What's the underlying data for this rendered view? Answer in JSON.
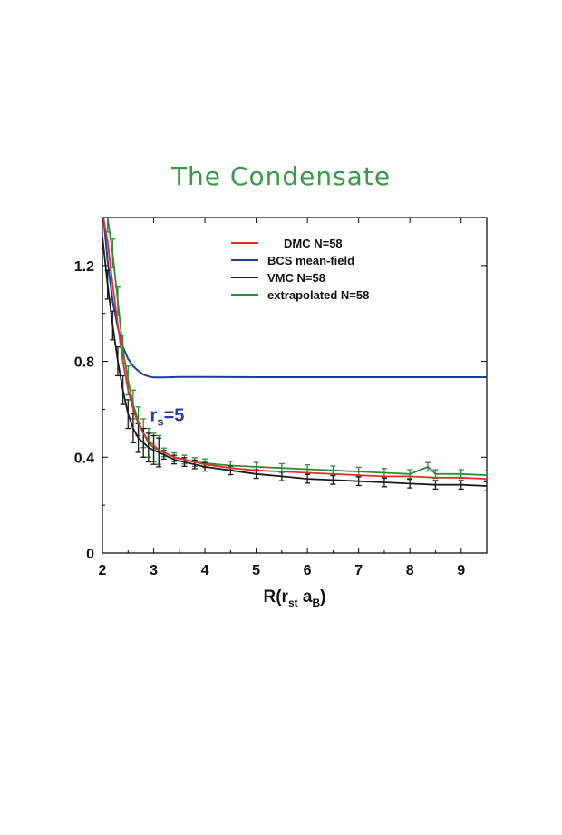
{
  "page": {
    "title": "The Condensate"
  },
  "chart_data": {
    "type": "line",
    "title": "The Condensate",
    "xlabel": "R(r",
    "xlabel_sub1": "st",
    "xlabel_mid": " a",
    "xlabel_sub2": "B",
    "xlabel_end": ")",
    "ylabel": "",
    "xlim": [
      2,
      9.5
    ],
    "ylim": [
      0,
      1.4
    ],
    "x_ticks": [
      2,
      3,
      4,
      5,
      6,
      7,
      8,
      9
    ],
    "y_ticks": [
      0,
      0.4,
      0.8,
      1.2
    ],
    "y_tick_labels": [
      "0",
      "0.4",
      "0.8",
      "1.2"
    ],
    "grid": false,
    "legend_position": "top-right",
    "annotation": {
      "text": "r",
      "sub": "s",
      "rest": "=5",
      "x": 3.0,
      "y": 0.52,
      "color": "#2a3f9a"
    },
    "series": [
      {
        "name": "DMC  N=58",
        "color": "#e0302a",
        "error_bars": false,
        "x": [
          2.0,
          2.1,
          2.2,
          2.3,
          2.4,
          2.5,
          2.6,
          2.7,
          2.8,
          2.9,
          3.0,
          3.1,
          3.2,
          3.4,
          3.6,
          3.8,
          4.0,
          4.5,
          5.0,
          5.5,
          6.0,
          6.5,
          7.0,
          7.5,
          8.0,
          8.5,
          9.0,
          9.5
        ],
        "y": [
          1.42,
          1.3,
          1.12,
          0.95,
          0.8,
          0.68,
          0.6,
          0.54,
          0.5,
          0.47,
          0.45,
          0.43,
          0.42,
          0.4,
          0.39,
          0.38,
          0.37,
          0.355,
          0.345,
          0.34,
          0.335,
          0.33,
          0.325,
          0.32,
          0.32,
          0.315,
          0.315,
          0.31
        ]
      },
      {
        "name": "BCS mean-field",
        "color": "#1c3f9a",
        "error_bars": false,
        "x": [
          2.0,
          2.1,
          2.2,
          2.3,
          2.4,
          2.5,
          2.6,
          2.7,
          2.8,
          2.9,
          3.0,
          3.2,
          3.5,
          4.0,
          5.0,
          6.0,
          7.0,
          8.0,
          9.0,
          9.5
        ],
        "y": [
          1.45,
          1.22,
          1.05,
          0.94,
          0.86,
          0.81,
          0.78,
          0.76,
          0.745,
          0.737,
          0.733,
          0.733,
          0.735,
          0.735,
          0.734,
          0.734,
          0.734,
          0.734,
          0.734,
          0.734
        ]
      },
      {
        "name": "VMC N=58",
        "color": "#1a1a1a",
        "error_bars": true,
        "x": [
          2.0,
          2.1,
          2.2,
          2.3,
          2.4,
          2.5,
          2.6,
          2.7,
          2.8,
          2.9,
          3.0,
          3.1,
          3.2,
          3.4,
          3.6,
          3.8,
          4.0,
          4.5,
          5.0,
          5.5,
          6.0,
          6.5,
          7.0,
          7.5,
          8.0,
          8.5,
          9.0,
          9.5
        ],
        "y": [
          1.32,
          1.12,
          0.95,
          0.8,
          0.68,
          0.58,
          0.52,
          0.48,
          0.46,
          0.44,
          0.43,
          0.42,
          0.41,
          0.39,
          0.38,
          0.37,
          0.36,
          0.345,
          0.33,
          0.32,
          0.31,
          0.305,
          0.3,
          0.295,
          0.29,
          0.285,
          0.285,
          0.28
        ]
      },
      {
        "name": "extrapolated N=58",
        "color": "#2e8b3a",
        "error_bars": true,
        "x": [
          2.0,
          2.1,
          2.2,
          2.3,
          2.4,
          2.5,
          2.6,
          2.7,
          2.8,
          2.9,
          3.0,
          3.1,
          3.2,
          3.4,
          3.6,
          3.8,
          4.0,
          4.5,
          5.0,
          5.5,
          6.0,
          6.5,
          7.0,
          7.5,
          8.0,
          8.35,
          8.5,
          9.0,
          9.5
        ],
        "y": [
          1.5,
          1.4,
          1.25,
          1.05,
          0.85,
          0.72,
          0.62,
          0.55,
          0.5,
          0.46,
          0.44,
          0.43,
          0.42,
          0.4,
          0.39,
          0.38,
          0.375,
          0.365,
          0.36,
          0.355,
          0.35,
          0.345,
          0.34,
          0.335,
          0.33,
          0.36,
          0.33,
          0.33,
          0.325
        ]
      }
    ]
  }
}
